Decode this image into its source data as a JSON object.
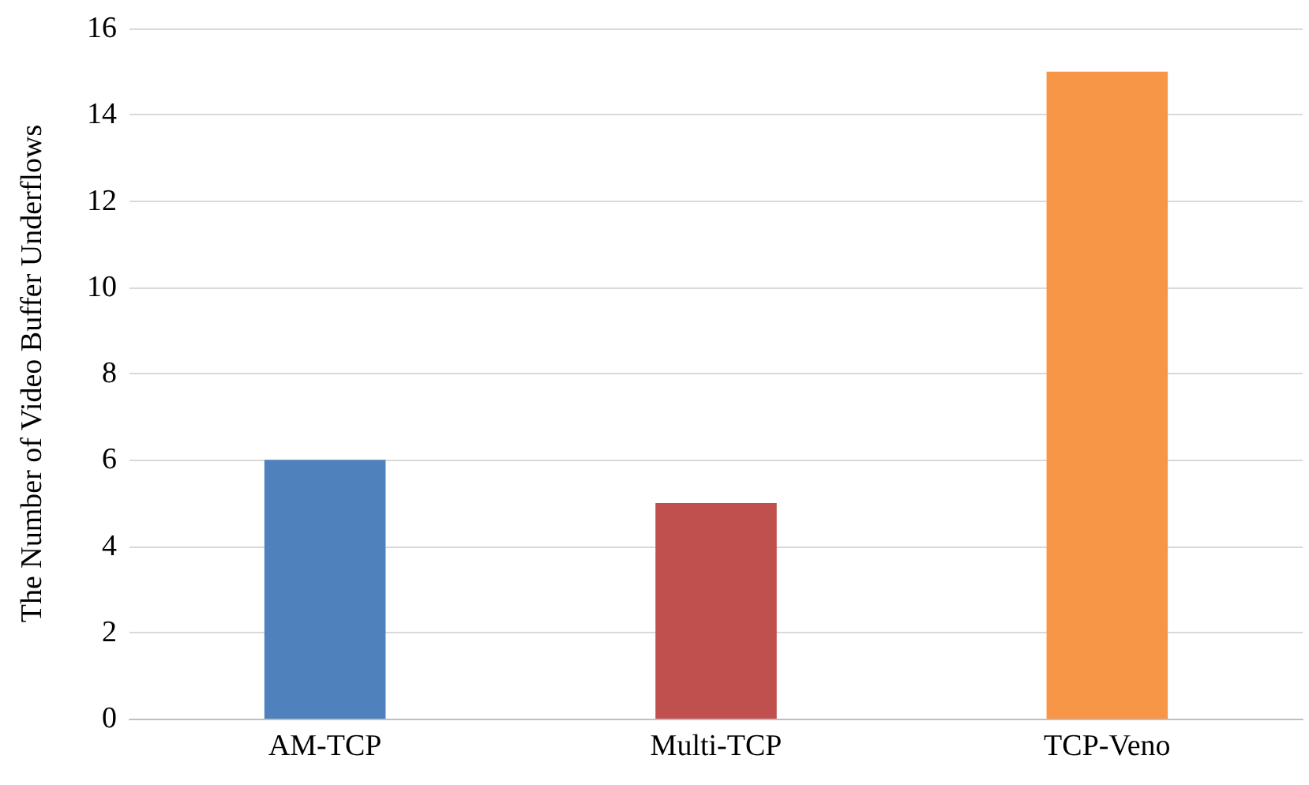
{
  "chart_data": {
    "type": "bar",
    "ylabel": "The Number of Video Buffer Underflows",
    "categories": [
      "AM-TCP",
      "Multi-TCP",
      "TCP-Veno"
    ],
    "values": [
      6,
      5,
      15
    ],
    "colors": [
      "#4f81bd",
      "#c0504d",
      "#f79646"
    ],
    "ylim": [
      0,
      16
    ],
    "yticks": [
      0,
      2,
      4,
      6,
      8,
      10,
      12,
      14,
      16
    ],
    "grid": "y"
  }
}
